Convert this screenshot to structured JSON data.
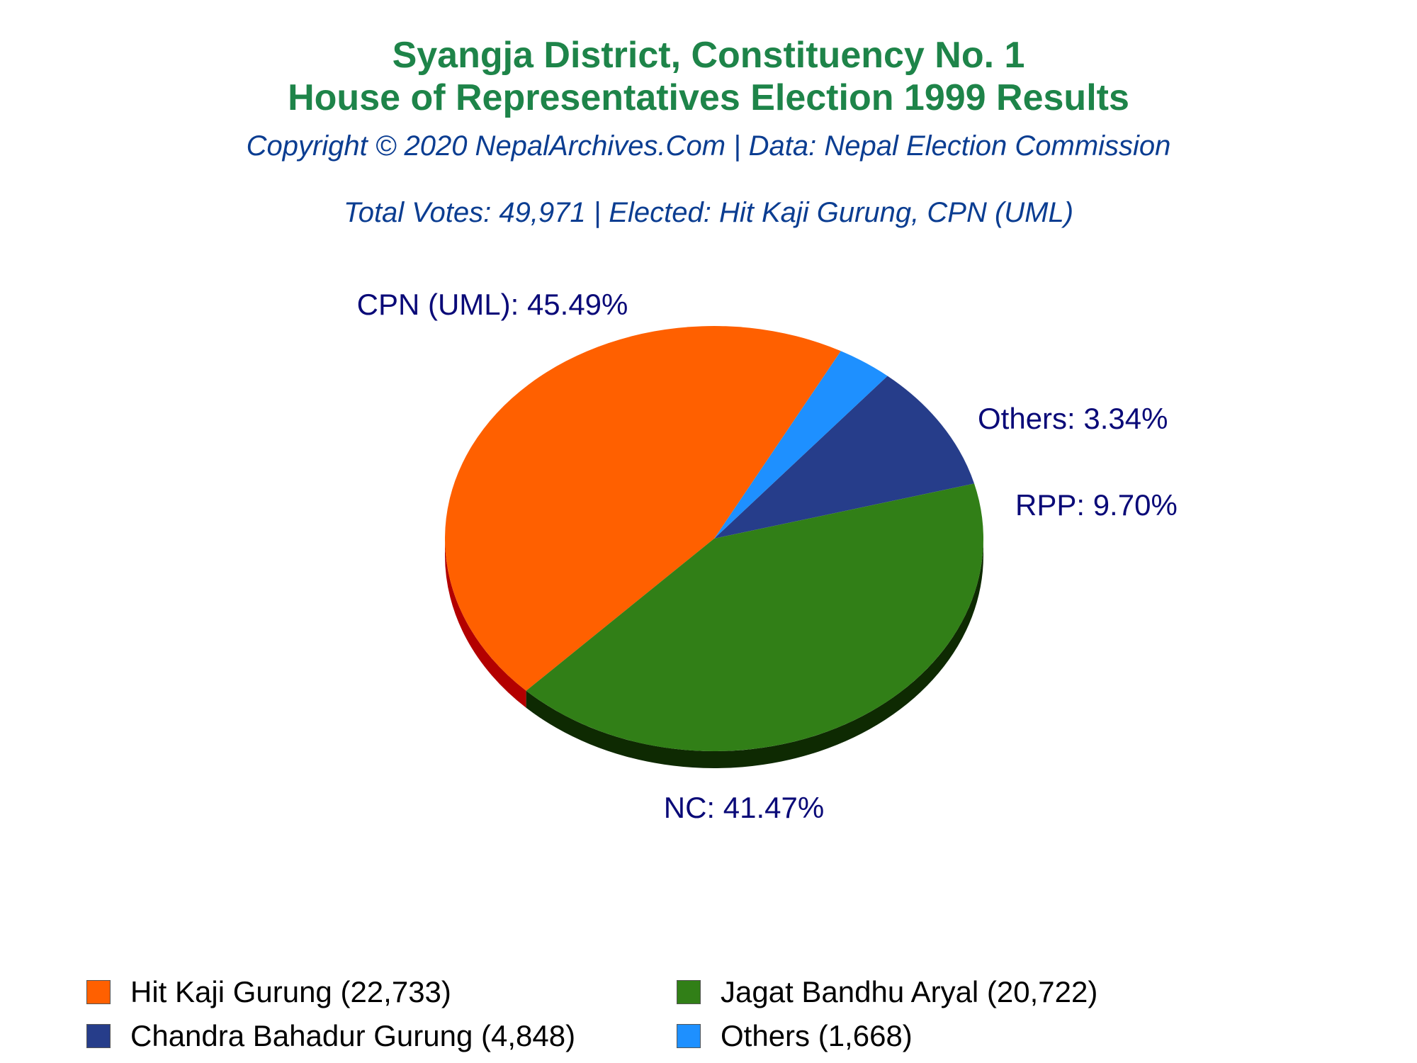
{
  "header": {
    "title_line1": "Syangja District, Constituency No. 1",
    "title_line2": "House of Representatives Election 1999 Results",
    "copyright": "Copyright © 2020 NepalArchives.Com | Data: Nepal Election Commission",
    "summary": "Total Votes: 49,971 | Elected: Hit Kaji Gurung, CPN (UML)"
  },
  "chart_data": {
    "type": "pie",
    "title": "Syangja District, Constituency No. 1 House of Representatives Election 1999 Results",
    "total_votes": 49971,
    "slices": [
      {
        "party": "CPN (UML)",
        "label": "CPN (UML): 45.49%",
        "percent": 45.49,
        "candidate": "Hit Kaji Gurung",
        "votes": 22733,
        "color": "#ff6000",
        "side_color": "#b30000"
      },
      {
        "party": "NC",
        "label": "NC: 41.47%",
        "percent": 41.47,
        "candidate": "Jagat Bandhu Aryal",
        "votes": 20722,
        "color": "#317f17",
        "side_color": "#0e2a02"
      },
      {
        "party": "RPP",
        "label": "RPP: 9.70%",
        "percent": 9.7,
        "candidate": "Chandra Bahadur Gurung",
        "votes": 4848,
        "color": "#263d8a",
        "side_color": "#131f48"
      },
      {
        "party": "Others",
        "label": "Others: 3.34%",
        "percent": 3.34,
        "candidate": "Others",
        "votes": 1668,
        "color": "#1e90ff",
        "side_color": "#0d4f91"
      }
    ],
    "label_color": "#0a0a78"
  },
  "legend": {
    "items": [
      {
        "text": "Hit Kaji Gurung (22,733)",
        "color": "#ff6000"
      },
      {
        "text": "Jagat Bandhu Aryal (20,722)",
        "color": "#317f17"
      },
      {
        "text": "Chandra Bahadur Gurung (4,848)",
        "color": "#263d8a"
      },
      {
        "text": "Others (1,668)",
        "color": "#1e90ff"
      }
    ]
  }
}
